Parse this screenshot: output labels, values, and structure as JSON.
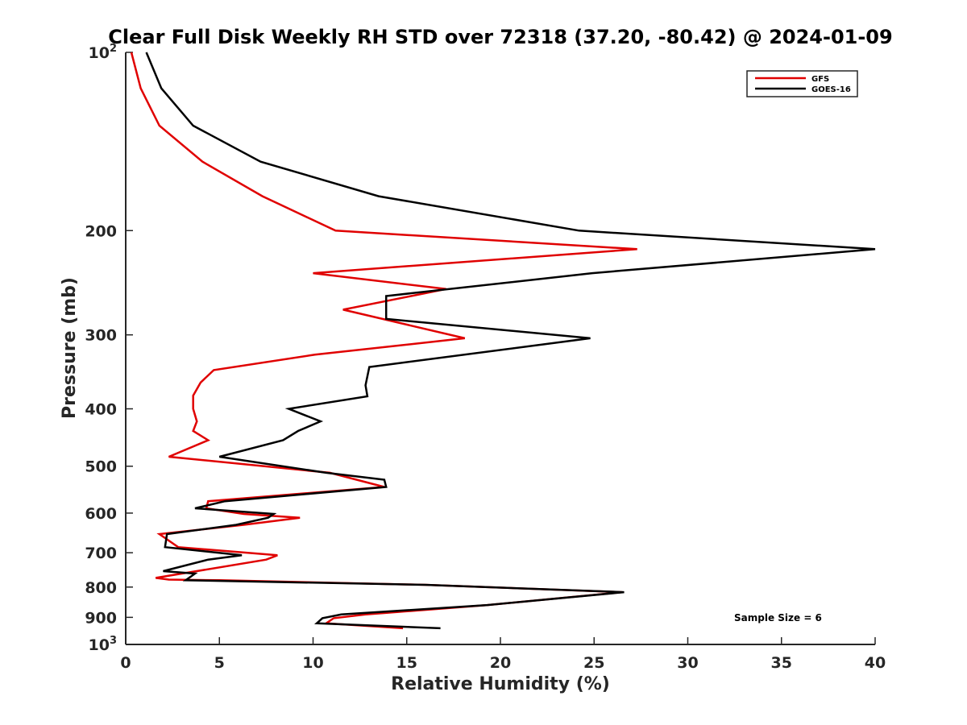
{
  "chart_data": {
    "type": "line",
    "title": "Clear Full Disk Weekly RH STD over 72318 (37.20, -80.42) @ 2024-01-09",
    "xlabel": "Relative Humidity (%)",
    "ylabel": "Pressure (mb)",
    "xlim": [
      0,
      40
    ],
    "ylim": [
      100,
      1000
    ],
    "y_scale": "log",
    "y_reversed": true,
    "x_ticks": [
      "0",
      "5",
      "10",
      "15",
      "20",
      "25",
      "30",
      "35",
      "40"
    ],
    "y_ticks": [
      {
        "value": 100,
        "base": "10",
        "exp": "2"
      },
      {
        "value": 200,
        "label": "200"
      },
      {
        "value": 300,
        "label": "300"
      },
      {
        "value": 400,
        "label": "400"
      },
      {
        "value": 500,
        "label": "500"
      },
      {
        "value": 600,
        "label": "600"
      },
      {
        "value": 700,
        "label": "700"
      },
      {
        "value": 800,
        "label": "800"
      },
      {
        "value": 900,
        "label": "900"
      },
      {
        "value": 1000,
        "base": "10",
        "exp": "3"
      }
    ],
    "grid": false,
    "legend_position": "top-right",
    "annotation": "Sample Size = 6",
    "series": [
      {
        "name": "GFS",
        "color": "#e00000",
        "points": [
          [
            0.3,
            100
          ],
          [
            0.8,
            115
          ],
          [
            1.8,
            133
          ],
          [
            4.1,
            153
          ],
          [
            7.3,
            175
          ],
          [
            11.2,
            200
          ],
          [
            27.3,
            215
          ],
          [
            10.0,
            236
          ],
          [
            17.1,
            251
          ],
          [
            11.6,
            272
          ],
          [
            18.1,
            304
          ],
          [
            10.1,
            324
          ],
          [
            4.7,
            344
          ],
          [
            4.0,
            361
          ],
          [
            3.6,
            380
          ],
          [
            3.6,
            400
          ],
          [
            3.8,
            420
          ],
          [
            3.6,
            436
          ],
          [
            4.4,
            452
          ],
          [
            2.3,
            482
          ],
          [
            10.9,
            513
          ],
          [
            13.8,
            542
          ],
          [
            4.4,
            573
          ],
          [
            4.3,
            589
          ],
          [
            6.3,
            602
          ],
          [
            9.3,
            611
          ],
          [
            6.3,
            628
          ],
          [
            1.8,
            651
          ],
          [
            2.8,
            685
          ],
          [
            8.1,
            707
          ],
          [
            7.5,
            719
          ],
          [
            1.6,
            772
          ],
          [
            2.3,
            777
          ],
          [
            5.0,
            779
          ],
          [
            16.0,
            793
          ],
          [
            26.5,
            816
          ],
          [
            19.3,
            858
          ],
          [
            12.8,
            890
          ],
          [
            11.1,
            903
          ],
          [
            10.7,
            921
          ],
          [
            14.8,
            939
          ]
        ]
      },
      {
        "name": "GOES-16",
        "color": "#000000",
        "points": [
          [
            1.1,
            100
          ],
          [
            1.9,
            115
          ],
          [
            3.6,
            133
          ],
          [
            7.2,
            153
          ],
          [
            13.5,
            175
          ],
          [
            24.2,
            200
          ],
          [
            40.0,
            215
          ],
          [
            24.9,
            236
          ],
          [
            13.9,
            258
          ],
          [
            13.9,
            282
          ],
          [
            24.8,
            304
          ],
          [
            13.0,
            340
          ],
          [
            12.8,
            365
          ],
          [
            12.9,
            381
          ],
          [
            8.7,
            400
          ],
          [
            10.4,
            420
          ],
          [
            9.2,
            436
          ],
          [
            8.4,
            452
          ],
          [
            5.0,
            482
          ],
          [
            10.7,
            513
          ],
          [
            13.8,
            527
          ],
          [
            13.9,
            542
          ],
          [
            5.3,
            573
          ],
          [
            3.7,
            589
          ],
          [
            7.9,
            602
          ],
          [
            7.6,
            611
          ],
          [
            5.9,
            628
          ],
          [
            2.2,
            651
          ],
          [
            2.1,
            685
          ],
          [
            6.2,
            707
          ],
          [
            4.4,
            719
          ],
          [
            2.0,
            752
          ],
          [
            3.7,
            759
          ],
          [
            3.2,
            779
          ],
          [
            16.0,
            793
          ],
          [
            26.6,
            816
          ],
          [
            19.3,
            858
          ],
          [
            11.5,
            890
          ],
          [
            10.5,
            903
          ],
          [
            10.2,
            921
          ],
          [
            16.8,
            939
          ]
        ]
      }
    ]
  }
}
